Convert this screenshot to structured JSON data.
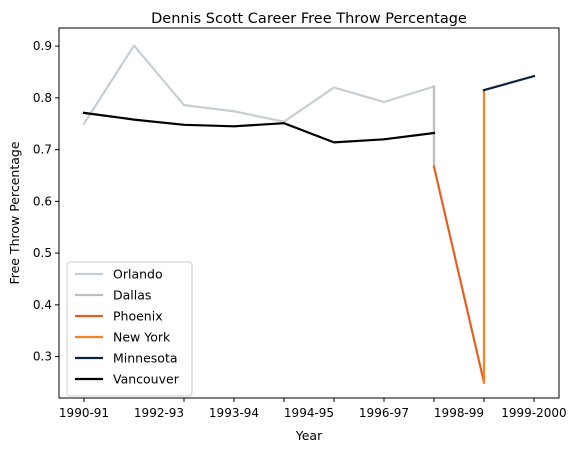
{
  "chart_data": {
    "type": "line",
    "title": "Dennis Scott  Career Free Throw Percentage",
    "xlabel": "Year",
    "ylabel": "Free Throw Percentage",
    "x_tick_labels": [
      "1990-91",
      "1992-93",
      "1993-94",
      "1994-95",
      "1996-97",
      "1998-99",
      "1999-2000"
    ],
    "ylim": [
      0.22,
      0.935
    ],
    "y_ticks": [
      0.3,
      0.4,
      0.5,
      0.6,
      0.7,
      0.8,
      0.9
    ],
    "y_tick_labels": [
      "0.3",
      "0.4",
      "0.5",
      "0.6",
      "0.7",
      "0.8",
      "0.9"
    ],
    "grid": false,
    "legend_position": "lower-left",
    "series": [
      {
        "name": "Orlando",
        "color": "#c4ced4",
        "points": [
          [
            0,
            0.75
          ],
          [
            1,
            0.901
          ],
          [
            2,
            0.786
          ],
          [
            3,
            0.774
          ],
          [
            4,
            0.754
          ],
          [
            5,
            0.82
          ],
          [
            6,
            0.792
          ],
          [
            7,
            0.822
          ],
          [
            7,
            0.667
          ]
        ]
      },
      {
        "name": "Dallas",
        "color": "#bbbfc3",
        "points": [
          [
            7,
            0.822
          ],
          [
            7,
            0.667
          ]
        ]
      },
      {
        "name": "Phoenix",
        "color": "#e56020",
        "points": [
          [
            7,
            0.667
          ],
          [
            8,
            0.25
          ]
        ]
      },
      {
        "name": "New York",
        "color": "#f58426",
        "points": [
          [
            8,
            0.25
          ],
          [
            8,
            0.815
          ]
        ]
      },
      {
        "name": "Minnesota",
        "color": "#0c2340",
        "points": [
          [
            8,
            0.815
          ],
          [
            9,
            0.842
          ]
        ]
      },
      {
        "name": "Vancouver",
        "color": "#000000",
        "points": [
          [
            0,
            0.771
          ],
          [
            1,
            0.758
          ],
          [
            2,
            0.748
          ],
          [
            3,
            0.745
          ],
          [
            4,
            0.751
          ],
          [
            5,
            0.714
          ],
          [
            6,
            0.72
          ],
          [
            7,
            0.732
          ]
        ]
      }
    ]
  }
}
